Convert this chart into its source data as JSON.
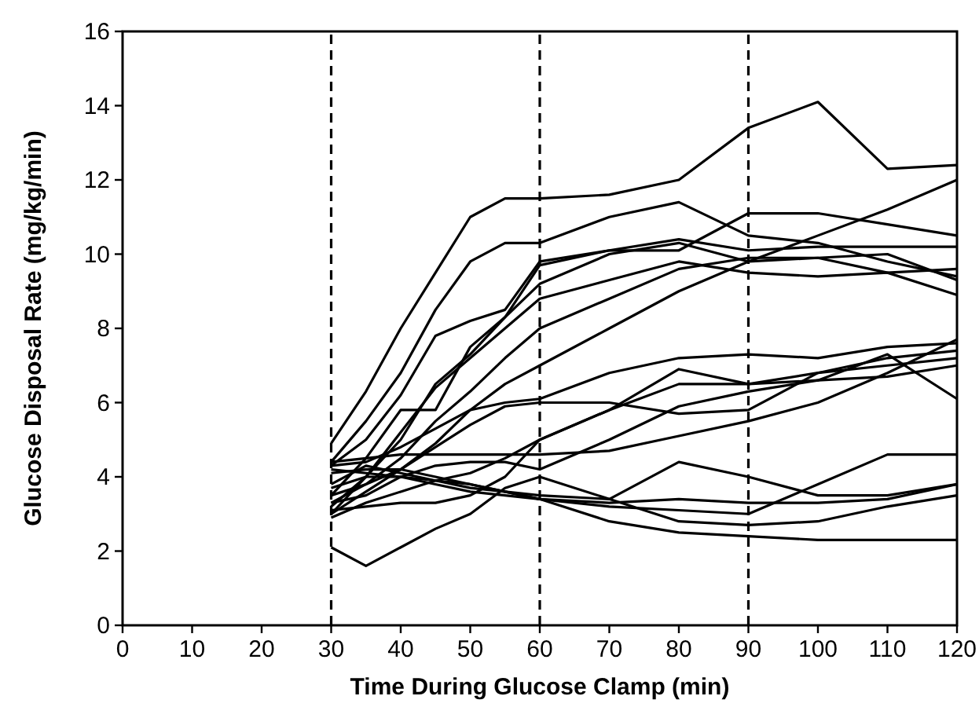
{
  "chart_data": {
    "type": "line",
    "xlabel": "Time During Glucose Clamp (min)",
    "ylabel": "Glucose Disposal Rate (mg/kg/min)",
    "xlim": [
      0,
      120
    ],
    "ylim": [
      0,
      16
    ],
    "xticks": [
      0,
      10,
      20,
      30,
      40,
      50,
      60,
      70,
      80,
      90,
      100,
      110,
      120
    ],
    "yticks": [
      0,
      2,
      4,
      6,
      8,
      10,
      12,
      14,
      16
    ],
    "line_style": "solid",
    "x": [
      30,
      35,
      40,
      45,
      50,
      55,
      60,
      70,
      80,
      90,
      100,
      110,
      120
    ],
    "ref_lines": [
      {
        "axis": "x",
        "value": 30,
        "color": "#000000",
        "line_style": "dashed"
      },
      {
        "axis": "x",
        "value": 60,
        "color": "#000000",
        "line_style": "dashed"
      },
      {
        "axis": "x",
        "value": 90,
        "color": "#000000",
        "line_style": "dashed"
      }
    ],
    "series": [
      {
        "color": "#000000",
        "values": [
          4.9,
          6.3,
          8,
          9.5,
          11,
          11.5,
          11.5,
          11.6,
          12,
          13.4,
          14.1,
          12.3,
          12.4
        ]
      },
      {
        "color": "#000000",
        "values": [
          4.4,
          5.5,
          6.8,
          8.5,
          9.8,
          10.3,
          10.3,
          11,
          11.4,
          10.5,
          10.3,
          9.8,
          9.4
        ]
      },
      {
        "color": "#000000",
        "values": [
          4.3,
          5,
          6.2,
          7.8,
          8.2,
          8.5,
          9.8,
          10.1,
          10.1,
          11.1,
          11.1,
          10.8,
          10.5
        ]
      },
      {
        "color": "#000000",
        "values": [
          3.5,
          4.5,
          5.8,
          5.8,
          7.5,
          8.3,
          9.7,
          10.1,
          10.4,
          10.1,
          10.2,
          10.2,
          10.2
        ]
      },
      {
        "color": "#000000",
        "values": [
          3.2,
          4,
          5,
          6.5,
          7.3,
          8.3,
          9.2,
          10,
          10.3,
          9.8,
          9.9,
          10,
          9.3
        ]
      },
      {
        "color": "#000000",
        "values": [
          3,
          4,
          5.2,
          6.4,
          7.2,
          8,
          8.8,
          9.3,
          9.8,
          9.5,
          9.4,
          9.5,
          9.6
        ]
      },
      {
        "color": "#000000",
        "values": [
          3.3,
          3.8,
          4.5,
          5.5,
          6.3,
          7.2,
          8,
          8.8,
          9.6,
          9.9,
          9.9,
          9.5,
          8.9
        ]
      },
      {
        "color": "#000000",
        "values": [
          3,
          3.6,
          4.2,
          4.9,
          5.8,
          6.5,
          7,
          8,
          9,
          9.8,
          10.5,
          11.2,
          12
        ]
      },
      {
        "color": "#000000",
        "values": [
          4.3,
          4.4,
          4.8,
          5.3,
          5.8,
          6,
          6.1,
          6.8,
          7.2,
          7.3,
          7.2,
          7.5,
          7.6
        ]
      },
      {
        "color": "#000000",
        "values": [
          4.4,
          4.5,
          4.6,
          4.6,
          4.6,
          4.6,
          4.6,
          4.7,
          5.1,
          5.5,
          6,
          6.8,
          7.7
        ]
      },
      {
        "color": "#000000",
        "values": [
          3.5,
          3.8,
          4.2,
          4.8,
          5.4,
          5.9,
          6,
          6,
          5.7,
          5.8,
          6.8,
          7.2,
          7.4
        ]
      },
      {
        "color": "#000000",
        "values": [
          2.9,
          3.3,
          3.6,
          3.9,
          4.1,
          4.5,
          5,
          5.8,
          6.5,
          6.5,
          6.8,
          7,
          7.2
        ]
      },
      {
        "color": "#000000",
        "values": [
          3.3,
          3.5,
          4,
          4.3,
          4.4,
          4.4,
          4.2,
          5,
          5.9,
          6.3,
          6.6,
          7.3,
          6.1
        ]
      },
      {
        "color": "#000000",
        "values": [
          4.1,
          4.2,
          4.2,
          4,
          3.8,
          3.6,
          3.5,
          3.4,
          4.4,
          4,
          3.5,
          3.5,
          3.8
        ]
      },
      {
        "color": "#000000",
        "values": [
          3.8,
          4.3,
          4.1,
          3.9,
          3.7,
          3.6,
          3.4,
          3.2,
          3.1,
          3,
          3.8,
          4.6,
          4.6
        ]
      },
      {
        "color": "#000000",
        "values": [
          3.7,
          4,
          4,
          3.9,
          3.8,
          3.6,
          3.4,
          3.3,
          3.4,
          3.3,
          3.3,
          3.4,
          3.8
        ]
      },
      {
        "color": "#000000",
        "values": [
          4.2,
          4.1,
          4,
          3.8,
          3.6,
          3.5,
          3.4,
          2.8,
          2.5,
          2.4,
          2.3,
          2.3,
          2.3
        ]
      },
      {
        "color": "#000000",
        "values": [
          2.1,
          1.6,
          2.1,
          2.6,
          3,
          3.7,
          4,
          3.4,
          2.8,
          2.7,
          2.8,
          3.2,
          3.5
        ]
      },
      {
        "color": "#000000",
        "values": [
          3.1,
          3.2,
          3.3,
          3.3,
          3.5,
          4,
          5,
          5.8,
          6.9,
          6.5,
          6.6,
          6.7,
          7
        ]
      }
    ]
  }
}
